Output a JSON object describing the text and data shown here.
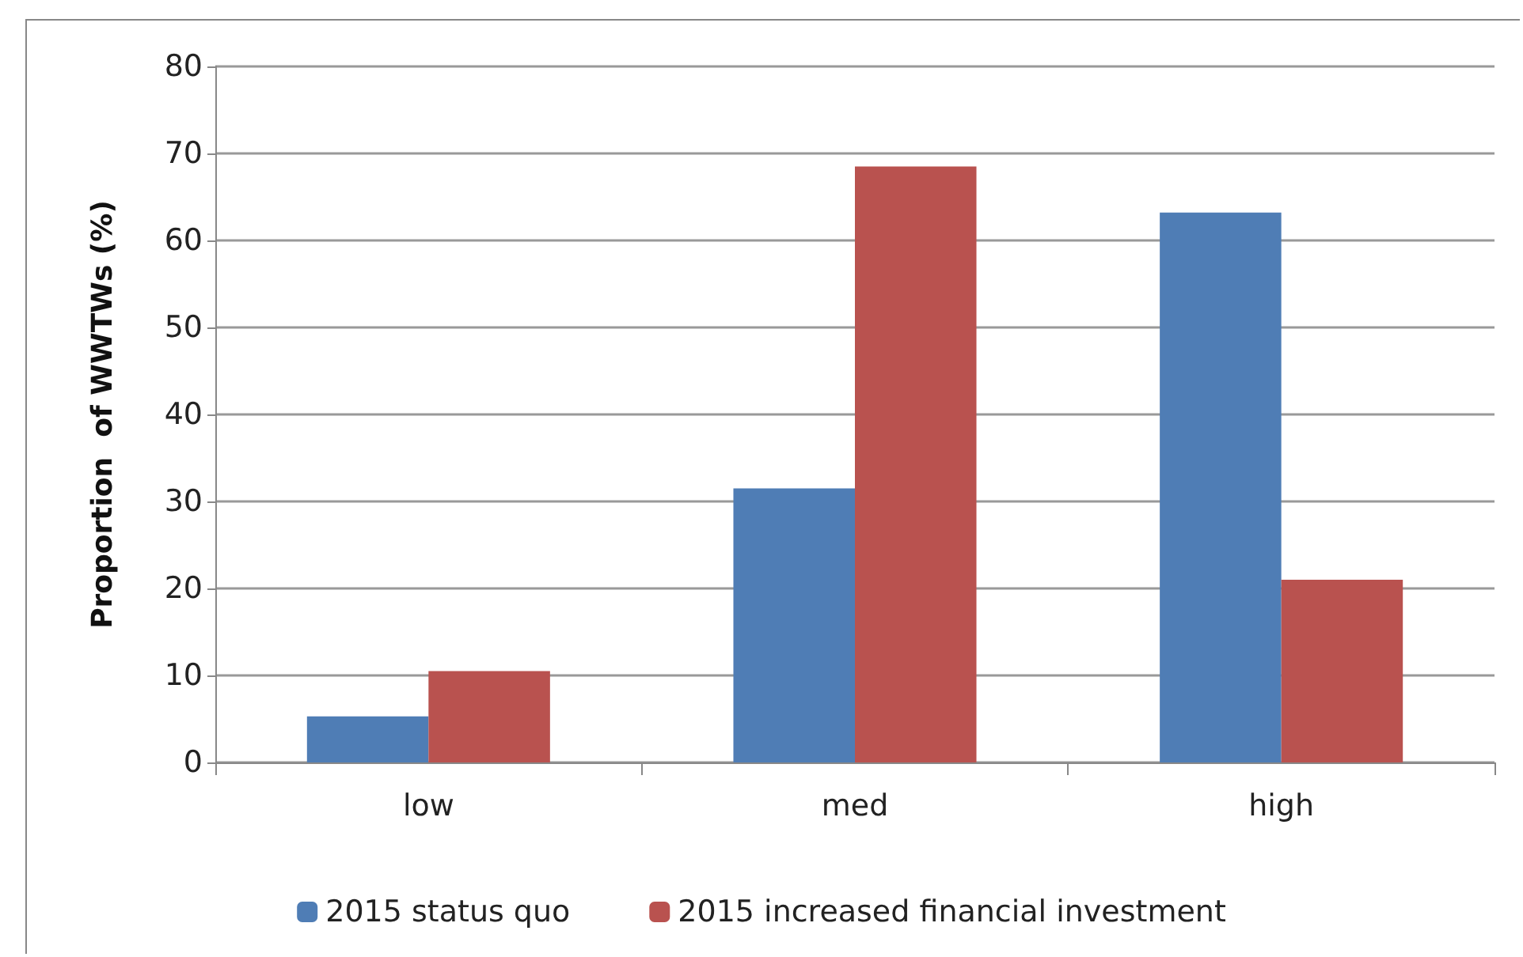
{
  "chart_data": {
    "type": "bar",
    "ylabel": "Proportion  of WWTWs (%)",
    "categories": [
      "low",
      "med",
      "high"
    ],
    "series": [
      {
        "name": "2015 status quo",
        "color": "#4f7db5",
        "values": [
          5.3,
          31.5,
          63.2
        ]
      },
      {
        "name": "2015 increased financial investment",
        "color": "#b9524f",
        "values": [
          10.5,
          68.5,
          21
        ]
      }
    ],
    "ylim": [
      0,
      80
    ],
    "yticks": [
      0,
      10,
      20,
      30,
      40,
      50,
      60,
      70,
      80
    ],
    "grid": "y",
    "legend": "bottom"
  }
}
